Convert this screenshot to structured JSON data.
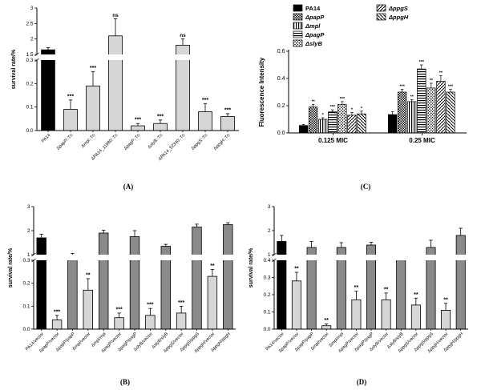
{
  "panels": {
    "a": {
      "label": "(A)"
    },
    "b": {
      "label": "(B)"
    },
    "c": {
      "label": "(C)"
    },
    "d": {
      "label": "(D)"
    }
  },
  "colors": {
    "black": "#000000",
    "light": "#d6d6d6",
    "dark": "#8a8a8a"
  },
  "chart_data": [
    {
      "id": "A",
      "type": "bar",
      "broken_axis": true,
      "ylabel": "survival rate/%",
      "lower": {
        "range": [
          0,
          0.3
        ],
        "ticks": [
          [
            "0.0",
            0
          ],
          [
            "0.1",
            0.1
          ],
          [
            "0.2",
            0.2
          ],
          [
            "0.3",
            0.3
          ]
        ]
      },
      "upper": {
        "range": [
          1.5,
          3
        ],
        "ticks": [
          [
            "1.5",
            1.5
          ],
          [
            "2",
            2
          ],
          [
            "2.5",
            2.5
          ],
          [
            "3",
            3
          ]
        ]
      },
      "bars": [
        {
          "label": "PA14",
          "value": 1.65,
          "err": 0.07,
          "fill": "black",
          "sig": ""
        },
        {
          "label": "ΔpapP::Tn",
          "value": 0.09,
          "err": 0.04,
          "fill": "light",
          "sig": "***"
        },
        {
          "label": "Δmpl::Tn",
          "value": 0.19,
          "err": 0.06,
          "fill": "light",
          "sig": "***"
        },
        {
          "label": "ΔPA14_11980::Tn",
          "value": 2.1,
          "err": 0.55,
          "fill": "light",
          "sig": "ns"
        },
        {
          "label": "ΔpagP::Tn",
          "value": 0.02,
          "err": 0.01,
          "fill": "light",
          "sig": "***"
        },
        {
          "label": "ΔslyB::Tn",
          "value": 0.03,
          "err": 0.015,
          "fill": "light",
          "sig": "***"
        },
        {
          "label": "ΔPA14_52340::Tn",
          "value": 1.8,
          "err": 0.2,
          "fill": "light",
          "sig": "ns"
        },
        {
          "label": "ΔppgS::Tn",
          "value": 0.08,
          "err": 0.035,
          "fill": "light",
          "sig": "***"
        },
        {
          "label": "ΔppgH::Tn",
          "value": 0.06,
          "err": 0.012,
          "fill": "light",
          "sig": "***"
        }
      ]
    },
    {
      "id": "C",
      "type": "grouped-bar",
      "ylabel": "Fluorescence Intensity",
      "ylim": [
        0,
        0.6
      ],
      "yticks": [
        [
          "0.0",
          0
        ],
        [
          "0.2",
          0.2
        ],
        [
          "0.4",
          0.4
        ],
        [
          "0.6",
          0.6
        ]
      ],
      "groups": [
        "0.125 MIC",
        "0.25 MIC"
      ],
      "series": [
        {
          "name": "PA14",
          "pattern": "solid",
          "values": [
            0.055,
            0.135
          ],
          "errs": [
            0.008,
            0.02
          ],
          "sigs": [
            "",
            ""
          ]
        },
        {
          "name": "ΔpapP",
          "pattern": "checker",
          "values": [
            0.19,
            0.3
          ],
          "errs": [
            0.02,
            0.02
          ],
          "sigs": [
            "**",
            "***"
          ]
        },
        {
          "name": "Δmpl",
          "pattern": "vert",
          "values": [
            0.1,
            0.23
          ],
          "errs": [
            0.012,
            0.015
          ],
          "sigs": [
            "*",
            "**"
          ]
        },
        {
          "name": "ΔpagP",
          "pattern": "horiz",
          "values": [
            0.155,
            0.47
          ],
          "errs": [
            0.015,
            0.03
          ],
          "sigs": [
            "***",
            "***"
          ]
        },
        {
          "name": "ΔslyB",
          "pattern": "dots",
          "values": [
            0.21,
            0.33
          ],
          "errs": [
            0.02,
            0.035
          ],
          "sigs": [
            "***",
            "**"
          ]
        },
        {
          "name": "ΔppgS",
          "pattern": "diag1",
          "values": [
            0.13,
            0.38
          ],
          "errs": [
            0.02,
            0.04
          ],
          "sigs": [
            "*",
            "**"
          ]
        },
        {
          "name": "ΔppgH",
          "pattern": "diag2",
          "values": [
            0.14,
            0.3
          ],
          "errs": [
            0.02,
            0.02
          ],
          "sigs": [
            "*",
            "***"
          ]
        }
      ],
      "legend_columns": [
        [
          0,
          1,
          2,
          3,
          4
        ],
        [
          5,
          6
        ]
      ]
    },
    {
      "id": "B",
      "type": "bar",
      "broken_axis": true,
      "ylabel": "survival rate/%",
      "lower": {
        "range": [
          0,
          0.3
        ],
        "ticks": [
          [
            "0.0",
            0
          ],
          [
            "0.1",
            0.1
          ],
          [
            "0.2",
            0.2
          ],
          [
            "0.3",
            0.3
          ]
        ]
      },
      "upper": {
        "range": [
          1,
          3
        ],
        "ticks": [
          [
            "1",
            1
          ],
          [
            "2",
            2
          ],
          [
            "3",
            3
          ]
        ]
      },
      "bars": [
        {
          "label": "PA14/vector",
          "value": 1.7,
          "err": 0.15,
          "fill": "black",
          "sig": ""
        },
        {
          "label": "ΔpapP/vector",
          "value": 0.04,
          "err": 0.02,
          "fill": "light",
          "sig": "***"
        },
        {
          "label": "ΔpapP/papP",
          "value": 0.9,
          "err": 0.15,
          "fill": "dark",
          "sig": ""
        },
        {
          "label": "Δmpl/vector",
          "value": 0.17,
          "err": 0.05,
          "fill": "light",
          "sig": "**"
        },
        {
          "label": "Δmpl/mpl",
          "value": 1.9,
          "err": 0.12,
          "fill": "dark",
          "sig": ""
        },
        {
          "label": "ΔpagP/vector",
          "value": 0.05,
          "err": 0.02,
          "fill": "light",
          "sig": "***"
        },
        {
          "label": "ΔpagP/pagP",
          "value": 1.75,
          "err": 0.25,
          "fill": "dark",
          "sig": ""
        },
        {
          "label": "ΔslyB/vector",
          "value": 0.06,
          "err": 0.03,
          "fill": "light",
          "sig": "***"
        },
        {
          "label": "ΔslyB/slyB",
          "value": 1.35,
          "err": 0.08,
          "fill": "dark",
          "sig": ""
        },
        {
          "label": "ΔppgS/vector",
          "value": 0.07,
          "err": 0.03,
          "fill": "light",
          "sig": "***"
        },
        {
          "label": "ΔppgS/ppgS",
          "value": 2.15,
          "err": 0.12,
          "fill": "dark",
          "sig": ""
        },
        {
          "label": "ΔppgH/vector",
          "value": 0.23,
          "err": 0.03,
          "fill": "light",
          "sig": "**"
        },
        {
          "label": "ΔppgH/ppgH",
          "value": 2.25,
          "err": 0.08,
          "fill": "dark",
          "sig": ""
        }
      ]
    },
    {
      "id": "D",
      "type": "bar",
      "broken_axis": true,
      "ylabel": "survival rate/%",
      "lower": {
        "range": [
          0,
          0.4
        ],
        "ticks": [
          [
            "0.0",
            0
          ],
          [
            "0.1",
            0.1
          ],
          [
            "0.2",
            0.2
          ],
          [
            "0.3",
            0.3
          ],
          [
            "0.4",
            0.4
          ]
        ]
      },
      "upper": {
        "range": [
          1,
          3
        ],
        "ticks": [
          [
            "1",
            1
          ],
          [
            "2",
            2
          ],
          [
            "3",
            3
          ]
        ]
      },
      "bars": [
        {
          "label": "PA14/vector",
          "value": 1.55,
          "err": 0.25,
          "fill": "black",
          "sig": ""
        },
        {
          "label": "ΔpapP/vector",
          "value": 0.28,
          "err": 0.05,
          "fill": "light",
          "sig": "**"
        },
        {
          "label": "ΔpapP/papP",
          "value": 1.3,
          "err": 0.25,
          "fill": "dark",
          "sig": ""
        },
        {
          "label": "Δmpl/vector",
          "value": 0.02,
          "err": 0.01,
          "fill": "light",
          "sig": "**"
        },
        {
          "label": "Δmpl/mpl",
          "value": 1.3,
          "err": 0.2,
          "fill": "dark",
          "sig": ""
        },
        {
          "label": "ΔpagP/vector",
          "value": 0.17,
          "err": 0.05,
          "fill": "light",
          "sig": "**"
        },
        {
          "label": "ΔpagP/pagP",
          "value": 1.4,
          "err": 0.12,
          "fill": "dark",
          "sig": ""
        },
        {
          "label": "ΔslyB/vector",
          "value": 0.17,
          "err": 0.04,
          "fill": "light",
          "sig": "**"
        },
        {
          "label": "ΔslyB/slyB",
          "value": 0.85,
          "err": 0.12,
          "fill": "dark",
          "sig": ""
        },
        {
          "label": "ΔppgS/vector",
          "value": 0.14,
          "err": 0.04,
          "fill": "light",
          "sig": "**"
        },
        {
          "label": "ΔppgS/ppgS",
          "value": 1.3,
          "err": 0.3,
          "fill": "dark",
          "sig": ""
        },
        {
          "label": "ΔppgH/vector",
          "value": 0.11,
          "err": 0.04,
          "fill": "light",
          "sig": "**"
        },
        {
          "label": "ΔppgH/ppgH",
          "value": 1.8,
          "err": 0.3,
          "fill": "dark",
          "sig": ""
        }
      ]
    }
  ]
}
